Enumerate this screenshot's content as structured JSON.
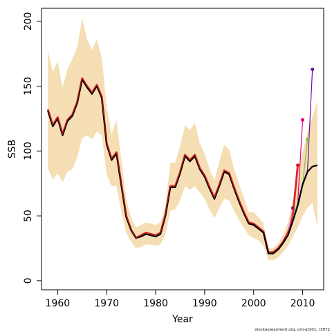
{
  "chart_data": {
    "type": "line",
    "xlabel": "Year",
    "ylabel": "SSB",
    "footnote": "stockassessment.org, csh-qt101, r3072",
    "xlim": [
      1956.7,
      2014.3
    ],
    "ylim": [
      -7,
      210
    ],
    "x_ticks": [
      1960,
      1970,
      1980,
      1990,
      2000,
      2010
    ],
    "y_ticks": [
      0,
      50,
      100,
      150,
      200
    ],
    "grid": false,
    "legend": "none",
    "confidence_band": {
      "name": "",
      "color": "#F5DEB3",
      "x": [
        1958,
        1959,
        1960,
        1961,
        1962,
        1963,
        1964,
        1965,
        1966,
        1967,
        1968,
        1969,
        1970,
        1971,
        1972,
        1973,
        1974,
        1975,
        1976,
        1977,
        1978,
        1979,
        1980,
        1981,
        1982,
        1983,
        1984,
        1985,
        1986,
        1987,
        1988,
        1989,
        1990,
        1991,
        1992,
        1993,
        1994,
        1995,
        1996,
        1997,
        1998,
        1999,
        2000,
        2001,
        2002,
        2003,
        2004,
        2005,
        2006,
        2007,
        2008,
        2009,
        2010,
        2011,
        2012,
        2013
      ],
      "upper": [
        177,
        161,
        169,
        149,
        163,
        171,
        180,
        202,
        186,
        178,
        186,
        172,
        134,
        113,
        124,
        93,
        63,
        48,
        41,
        43,
        45,
        44,
        43,
        45,
        58,
        91,
        91,
        104,
        120,
        116,
        122,
        106,
        98,
        86,
        77,
        92,
        105,
        101,
        86,
        75,
        64,
        53,
        53,
        49,
        44,
        25,
        25,
        29,
        35,
        45,
        63,
        86,
        99,
        115,
        126,
        139
      ],
      "lower": [
        87,
        78,
        83,
        76,
        84,
        86,
        95,
        110,
        112,
        109,
        115,
        112,
        82,
        73,
        73,
        53,
        37,
        30,
        25,
        26,
        28,
        28,
        27,
        28,
        36,
        54,
        55,
        62,
        73,
        70,
        73,
        68,
        63,
        55,
        48,
        56,
        63,
        62,
        54,
        47,
        41,
        35,
        33,
        31,
        27,
        16,
        16,
        18,
        22,
        27,
        34,
        41,
        50,
        56,
        60,
        41
      ]
    },
    "series": [
      {
        "name": "",
        "color": "#000000",
        "x": [
          1958,
          1959,
          1960,
          1961,
          1962,
          1963,
          1964,
          1965,
          1966,
          1967,
          1968,
          1969,
          1970,
          1971,
          1972,
          1973,
          1974,
          1975,
          1976,
          1977,
          1978,
          1979,
          1980,
          1981,
          1982,
          1983,
          1984,
          1985,
          1986,
          1987,
          1988,
          1989,
          1990,
          1991,
          1992,
          1993,
          1994,
          1995,
          1996,
          1997,
          1998,
          1999,
          2000,
          2001,
          2002,
          2003,
          2004,
          2005,
          2006,
          2007,
          2008,
          2009,
          2010,
          2011,
          2012,
          2013
        ],
        "values": [
          131,
          119,
          125,
          112,
          123,
          127,
          137,
          155,
          149,
          144,
          150,
          141,
          105,
          93,
          98,
          73,
          49,
          39,
          33,
          34,
          36,
          35,
          34,
          36,
          50,
          72,
          72,
          83,
          96,
          92,
          96,
          86,
          80,
          71,
          63,
          73,
          84,
          82,
          71,
          61,
          52,
          44,
          43,
          40,
          37,
          21,
          21,
          24,
          29,
          35,
          46,
          58,
          74,
          84,
          88,
          89
        ]
      },
      {
        "name": "",
        "color": "#D62728",
        "x": [
          1958,
          1959,
          1960,
          1961,
          1962,
          1963,
          1964,
          1965,
          1966,
          1967,
          1968,
          1969,
          1970,
          1971,
          1972,
          1973,
          1974,
          1975,
          1976,
          1977,
          1978,
          1979,
          1980,
          1981,
          1982,
          1983,
          1984,
          1985,
          1986,
          1987,
          1988,
          1989,
          1990,
          1991,
          1992,
          1993,
          1994,
          1995,
          1996,
          1997,
          1998,
          1999,
          2000,
          2001,
          2002,
          2003,
          2004,
          2005,
          2006,
          2007,
          2008,
          2009
        ],
        "values": [
          132,
          120,
          126,
          113,
          124,
          128,
          138,
          156,
          150,
          145,
          151,
          142,
          106,
          94,
          99,
          74,
          50,
          39,
          33,
          35,
          37,
          36,
          35,
          37,
          51,
          73,
          73,
          84,
          97,
          93,
          97,
          87,
          81,
          72,
          64,
          74,
          85,
          83,
          72,
          62,
          53,
          45,
          44,
          41,
          38,
          22,
          22,
          25,
          30,
          37,
          50,
          89
        ]
      },
      {
        "name": "",
        "color": "#E377C2",
        "x": [
          1958,
          1959,
          1960,
          1961,
          1962,
          1963,
          1964,
          1965,
          1966,
          1967,
          1968,
          1969,
          1970,
          1971,
          1972,
          1973,
          1974,
          1975,
          1976,
          1977,
          1978,
          1979,
          1980,
          1981,
          1982,
          1983,
          1984,
          1985,
          1986,
          1987,
          1988,
          1989,
          1990,
          1991,
          1992,
          1993,
          1994,
          1995,
          1996,
          1997,
          1998,
          1999,
          2000,
          2001,
          2002,
          2003,
          2004,
          2005,
          2006,
          2007,
          2008
        ],
        "values": [
          131,
          119,
          125,
          112,
          123,
          127,
          137,
          155,
          149,
          144,
          150,
          141,
          105,
          93,
          98,
          73,
          49,
          39,
          33,
          34,
          36,
          35,
          34,
          36,
          50,
          72,
          72,
          83,
          96,
          92,
          96,
          86,
          80,
          71,
          63,
          73,
          84,
          82,
          71,
          61,
          52,
          44,
          43,
          40,
          37,
          21,
          21,
          24,
          29,
          36,
          56
        ]
      },
      {
        "name": "",
        "color": "#E6007E",
        "x": [
          2007,
          2008,
          2009,
          2010
        ],
        "values": [
          36,
          48,
          60,
          124
        ]
      },
      {
        "name": "",
        "color": "#7CC242",
        "x": [
          2008,
          2009,
          2010,
          2011
        ],
        "values": [
          48,
          60,
          74,
          109
        ]
      },
      {
        "name": "",
        "color": "#6A0DAD",
        "x": [
          2009,
          2010,
          2011,
          2012
        ],
        "values": [
          60,
          75,
          85,
          163
        ]
      }
    ],
    "points": [
      {
        "x": 2008,
        "y": 56,
        "color": "#8B1A4A"
      },
      {
        "x": 2009,
        "y": 89,
        "color": "#E41A1C"
      },
      {
        "x": 2010,
        "y": 124,
        "color": "#E6007E"
      },
      {
        "x": 2011,
        "y": 109,
        "color": "#7CC242"
      },
      {
        "x": 2012,
        "y": 163,
        "color": "#6A0DAD"
      }
    ]
  }
}
